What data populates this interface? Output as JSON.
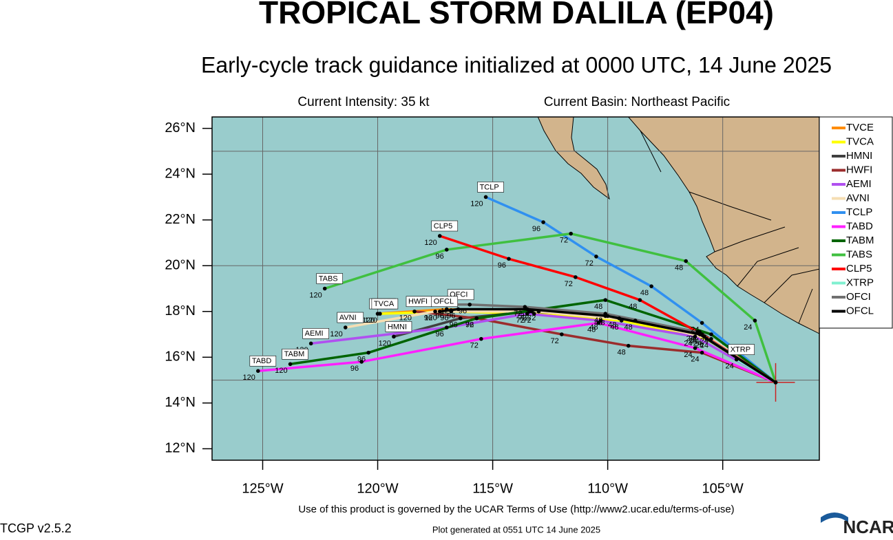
{
  "chart_data": {
    "type": "track-map",
    "title": "TROPICAL STORM DALILA (EP04)",
    "subtitle": "Early-cycle track guidance initialized at 0000 UTC, 14 June 2025",
    "info_left": "Current Intensity: 35 kt",
    "info_right": "Current Basin: Northeast Pacific",
    "footer_terms": "Use of this product is governed by the UCAR Terms of Use (http://www2.ucar.edu/terms-of-use)",
    "footer_version": "TCGP v2.5.2",
    "footer_generated": "Plot generated at 0551 UTC   14 June 2025",
    "logo": "NCAR",
    "xlim": [
      -127.2,
      -100.8
    ],
    "ylim": [
      11.5,
      26.5
    ],
    "xticks": [
      {
        "value": -125,
        "label": "125°W"
      },
      {
        "value": -120,
        "label": "120°W"
      },
      {
        "value": -115,
        "label": "115°W"
      },
      {
        "value": -110,
        "label": "110°W"
      },
      {
        "value": -105,
        "label": "105°W"
      }
    ],
    "yticks": [
      {
        "value": 12,
        "label": "12°N"
      },
      {
        "value": 14,
        "label": "14°N"
      },
      {
        "value": 16,
        "label": "16°N"
      },
      {
        "value": 18,
        "label": "18°N"
      },
      {
        "value": 20,
        "label": "20°N"
      },
      {
        "value": 22,
        "label": "22°N"
      },
      {
        "value": 24,
        "label": "24°N"
      },
      {
        "value": 26,
        "label": "26°N"
      }
    ],
    "ygrid": [
      15,
      20,
      25
    ],
    "grid": true,
    "ocean_color": "#99cccc",
    "land_color": "#d2b48c",
    "storm_position": {
      "lon": -102.7,
      "lat": 14.9,
      "color": "#cc2020"
    },
    "hours": [
      0,
      24,
      48,
      72,
      96,
      120
    ],
    "series": [
      {
        "name": "TVCE",
        "color": "#ff8c00",
        "x": [
          -102.7,
          -105.8,
          -109.5,
          -113.4,
          -117.0,
          -120.0
        ],
        "y": [
          14.9,
          16.9,
          17.7,
          18.0,
          18.1,
          17.9
        ]
      },
      {
        "name": "TVCA",
        "color": "#ffff00",
        "x": [
          -102.7,
          -105.7,
          -109.4,
          -113.2,
          -116.8,
          -119.9
        ],
        "y": [
          14.9,
          16.8,
          17.6,
          17.9,
          18.0,
          17.9
        ]
      },
      {
        "name": "HMNI",
        "color": "#404040",
        "x": [
          -102.7,
          -106.0,
          -110.1,
          -113.3,
          -116.4,
          -119.3
        ],
        "y": [
          14.9,
          17.1,
          17.8,
          18.0,
          17.7,
          16.9
        ]
      },
      {
        "name": "HWFI",
        "color": "#9b2d2d",
        "x": [
          -102.7,
          -105.9,
          -109.1,
          -112.0,
          -115.7,
          -118.4
        ],
        "y": [
          14.9,
          16.2,
          16.5,
          17.0,
          17.7,
          18.0
        ]
      },
      {
        "name": "AEMI",
        "color": "#b050f0",
        "x": [
          -102.7,
          -106.2,
          -110.3,
          -113.5,
          -117.0,
          -122.9
        ],
        "y": [
          14.9,
          16.9,
          17.6,
          17.9,
          17.3,
          16.6
        ]
      },
      {
        "name": "AVNI",
        "color": "#f5deb3",
        "x": [
          -102.7,
          -105.5,
          -108.8,
          -113.0,
          -117.5,
          -121.4
        ],
        "y": [
          14.9,
          16.8,
          17.6,
          18.0,
          18.0,
          17.3
        ]
      },
      {
        "name": "TCLP",
        "color": "#3090f0",
        "x": [
          -102.7,
          -105.9,
          -108.1,
          -110.5,
          -112.8,
          -115.3
        ],
        "y": [
          14.9,
          17.5,
          19.1,
          20.4,
          21.9,
          23.0
        ]
      },
      {
        "name": "TABD",
        "color": "#ff20ff",
        "x": [
          -102.7,
          -106.2,
          -110.4,
          -115.5,
          -120.7,
          -125.2
        ],
        "y": [
          14.9,
          16.4,
          17.5,
          16.8,
          15.8,
          15.4
        ]
      },
      {
        "name": "TABM",
        "color": "#006400",
        "x": [
          -102.7,
          -105.5,
          -110.1,
          -115.7,
          -120.4,
          -123.8
        ],
        "y": [
          14.9,
          17.0,
          18.5,
          17.7,
          16.2,
          15.7
        ]
      },
      {
        "name": "TABS",
        "color": "#40c040",
        "x": [
          -102.7,
          -103.6,
          -106.6,
          -111.6,
          -117.0,
          -122.3
        ],
        "y": [
          14.9,
          17.6,
          20.2,
          21.4,
          20.7,
          19.0
        ]
      },
      {
        "name": "CLP5",
        "color": "#ff0000",
        "x": [
          -102.7,
          -105.9,
          -108.6,
          -111.4,
          -114.3,
          -117.3
        ],
        "y": [
          14.9,
          17.0,
          18.5,
          19.5,
          20.3,
          21.3
        ]
      },
      {
        "name": "XTRP",
        "color": "#80f0d0",
        "x": [
          -102.7,
          -104.4,
          null,
          null,
          null,
          null
        ],
        "y": [
          14.9,
          15.9,
          null,
          null,
          null,
          null
        ]
      },
      {
        "name": "OFCI",
        "color": "#707070",
        "x": [
          -102.7,
          -106.1,
          -110.1,
          -113.6,
          -116.0,
          -116.6
        ],
        "y": [
          14.9,
          17.1,
          17.9,
          18.2,
          18.3,
          18.3
        ]
      },
      {
        "name": "OFCL",
        "color": "#000000",
        "x": [
          -102.7,
          -106.0,
          -110.0,
          -113.5,
          -116.5,
          -117.3
        ],
        "y": [
          14.9,
          17.0,
          17.8,
          18.1,
          18.1,
          18.0
        ]
      }
    ]
  }
}
